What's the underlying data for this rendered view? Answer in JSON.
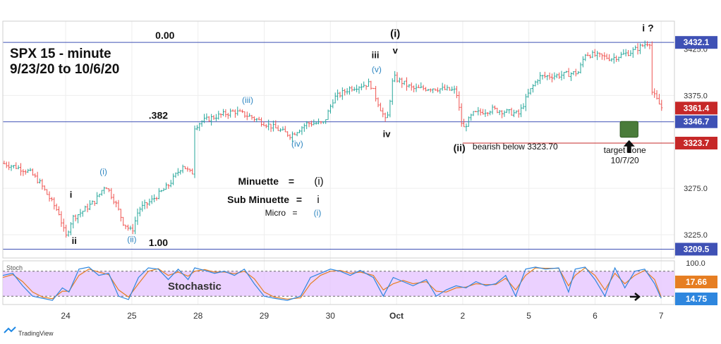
{
  "chart_data": [
    {
      "type": "ohlc",
      "title": "SPX 15 - minute",
      "subtitle": "9/23/20 to 10/6/20",
      "y_axis": {
        "ticks": [
          3225.0,
          3275.0,
          3375.0
        ],
        "partial_tick": "3425.0",
        "ylim": [
          3200,
          3455
        ],
        "scale": "linear",
        "position": "right"
      },
      "x_axis": {
        "ticks": [
          {
            "label": "24",
            "x": 0.95
          },
          {
            "label": "25",
            "x": 1.95
          },
          {
            "label": "28",
            "x": 2.95
          },
          {
            "label": "29",
            "x": 3.95
          },
          {
            "label": "30",
            "x": 4.95
          },
          {
            "label": "Oct",
            "x": 5.95
          },
          {
            "label": "2",
            "x": 6.95
          },
          {
            "label": "5",
            "x": 7.95
          },
          {
            "label": "6",
            "x": 8.95
          },
          {
            "label": "7",
            "x": 9.95
          }
        ],
        "xlim": [
          0,
          10.15
        ]
      },
      "grid": true,
      "price_path": [
        [
          0.0,
          3302
        ],
        [
          0.2,
          3298
        ],
        [
          0.4,
          3293
        ],
        [
          0.55,
          3282
        ],
        [
          0.7,
          3265
        ],
        [
          0.85,
          3248
        ],
        [
          0.95,
          3222
        ],
        [
          1.05,
          3243
        ],
        [
          1.2,
          3250
        ],
        [
          1.4,
          3262
        ],
        [
          1.55,
          3279
        ],
        [
          1.7,
          3260
        ],
        [
          1.82,
          3238
        ],
        [
          1.95,
          3228
        ],
        [
          2.05,
          3252
        ],
        [
          2.25,
          3262
        ],
        [
          2.5,
          3278
        ],
        [
          2.72,
          3300
        ],
        [
          2.82,
          3292
        ],
        [
          2.88,
          3340
        ],
        [
          3.0,
          3347
        ],
        [
          3.2,
          3352
        ],
        [
          3.5,
          3358
        ],
        [
          3.75,
          3352
        ],
        [
          4.05,
          3342
        ],
        [
          4.35,
          3332
        ],
        [
          4.6,
          3345
        ],
        [
          4.85,
          3345
        ],
        [
          5.0,
          3372
        ],
        [
          5.25,
          3383
        ],
        [
          5.55,
          3388
        ],
        [
          5.8,
          3345
        ],
        [
          5.9,
          3395
        ],
        [
          6.2,
          3382
        ],
        [
          6.5,
          3383
        ],
        [
          6.85,
          3380
        ],
        [
          6.95,
          3338
        ],
        [
          7.1,
          3355
        ],
        [
          7.4,
          3360
        ],
        [
          7.8,
          3355
        ],
        [
          7.95,
          3378
        ],
        [
          8.1,
          3395
        ],
        [
          8.45,
          3397
        ],
        [
          8.7,
          3400
        ],
        [
          8.8,
          3420
        ],
        [
          9.2,
          3415
        ],
        [
          9.5,
          3422
        ],
        [
          9.75,
          3432
        ],
        [
          9.8,
          3380
        ],
        [
          9.95,
          3362
        ]
      ],
      "horizontal_levels": [
        {
          "value": 3432.1,
          "label": "3432.1",
          "color": "#3f51b5",
          "line": "full"
        },
        {
          "value": 3346.7,
          "label": "3346.7",
          "color": "#3f51b5",
          "line": "full"
        },
        {
          "value": 3323.7,
          "label": "3323.7",
          "color": "#c62828",
          "line": "partial",
          "x_start": 6.95
        },
        {
          "value": 3209.5,
          "label": "3209.5",
          "color": "#3f51b5",
          "line": "full"
        }
      ],
      "current_price": {
        "value": 3361.4,
        "label": "3361.4",
        "color": "#c62828"
      },
      "fib_labels": [
        {
          "text": "0.00",
          "x": 2.45,
          "y": 3436
        },
        {
          "text": ".382",
          "x": 2.35,
          "y": 3350
        },
        {
          "text": "1.00",
          "x": 2.35,
          "y": 3213
        }
      ],
      "wave_labels": [
        {
          "text": "i",
          "x": 1.03,
          "y": 3265,
          "color": "#111111",
          "size": 13
        },
        {
          "text": "ii",
          "x": 1.08,
          "y": 3215,
          "color": "#111111",
          "size": 13
        },
        {
          "text": "(i)",
          "x": 1.52,
          "y": 3290,
          "color": "#2e86c1",
          "size": 12
        },
        {
          "text": "(ii)",
          "x": 1.95,
          "y": 3217,
          "color": "#2e86c1",
          "size": 12
        },
        {
          "text": "(iii)",
          "x": 3.7,
          "y": 3367,
          "color": "#2e86c1",
          "size": 12
        },
        {
          "text": "(iv)",
          "x": 4.45,
          "y": 3320,
          "color": "#2e86c1",
          "size": 12
        },
        {
          "text": "iii",
          "x": 5.63,
          "y": 3415,
          "color": "#111111",
          "size": 13
        },
        {
          "text": "(v)",
          "x": 5.65,
          "y": 3400,
          "color": "#2e86c1",
          "size": 12
        },
        {
          "text": "(i)",
          "x": 5.93,
          "y": 3438,
          "color": "#111111",
          "size": 15
        },
        {
          "text": "v",
          "x": 5.93,
          "y": 3420,
          "color": "#111111",
          "size": 13
        },
        {
          "text": "iv",
          "x": 5.8,
          "y": 3330,
          "color": "#111111",
          "size": 13
        },
        {
          "text": "(ii)",
          "x": 6.9,
          "y": 3315,
          "color": "#111111",
          "size": 14
        },
        {
          "text": "i ?",
          "x": 9.75,
          "y": 3444,
          "color": "#111111",
          "size": 14
        }
      ],
      "annotations": [
        {
          "text": "bearish below 3323.70",
          "x": 7.1,
          "y": 3317,
          "color": "#111111"
        },
        {
          "text": "target zone",
          "x": 9.4,
          "y": 3313,
          "color": "#111111"
        },
        {
          "text": "10/7/20",
          "x": 9.4,
          "y": 3302,
          "color": "#111111"
        }
      ],
      "target_zone": {
        "x_start": 9.33,
        "x_end": 9.6,
        "y_low": 3330,
        "y_high": 3347,
        "color": "#4a7c3a"
      },
      "legend": {
        "position": "center",
        "rows": [
          {
            "name": "Minuette",
            "eq": "=",
            "symbol": "(i)",
            "color": "#111111",
            "size": 15
          },
          {
            "name": "Sub Minuette",
            "eq": "=",
            "symbol": "i",
            "color": "#111111",
            "size": 15
          },
          {
            "name": "Micro",
            "eq": "=",
            "symbol": "(i)",
            "color": "#2e86c1",
            "size": 12
          }
        ]
      }
    },
    {
      "type": "line",
      "title": "Stoch",
      "label": "Stochastic",
      "y_axis": {
        "ticks": [
          100.0
        ],
        "ylim": [
          0,
          105
        ],
        "band": [
          20,
          80
        ],
        "band_color": "#e6c6ff"
      },
      "series": [
        {
          "color": "#2e86de",
          "last": 14.75,
          "last_label": "14.75"
        },
        {
          "color": "#e67e22",
          "last": 17.66,
          "last_label": "17.66"
        }
      ],
      "values_k": [
        [
          0.0,
          70
        ],
        [
          0.15,
          75
        ],
        [
          0.3,
          45
        ],
        [
          0.45,
          20
        ],
        [
          0.6,
          15
        ],
        [
          0.75,
          10
        ],
        [
          0.9,
          40
        ],
        [
          1.0,
          30
        ],
        [
          1.15,
          85
        ],
        [
          1.3,
          90
        ],
        [
          1.45,
          70
        ],
        [
          1.6,
          75
        ],
        [
          1.75,
          20
        ],
        [
          1.9,
          12
        ],
        [
          2.05,
          65
        ],
        [
          2.2,
          88
        ],
        [
          2.35,
          85
        ],
        [
          2.5,
          60
        ],
        [
          2.65,
          85
        ],
        [
          2.8,
          60
        ],
        [
          2.9,
          88
        ],
        [
          3.05,
          82
        ],
        [
          3.2,
          75
        ],
        [
          3.35,
          80
        ],
        [
          3.5,
          70
        ],
        [
          3.65,
          85
        ],
        [
          3.8,
          50
        ],
        [
          3.95,
          20
        ],
        [
          4.1,
          15
        ],
        [
          4.3,
          10
        ],
        [
          4.5,
          20
        ],
        [
          4.65,
          65
        ],
        [
          4.8,
          75
        ],
        [
          4.95,
          85
        ],
        [
          5.1,
          80
        ],
        [
          5.25,
          70
        ],
        [
          5.4,
          82
        ],
        [
          5.6,
          65
        ],
        [
          5.75,
          20
        ],
        [
          5.9,
          65
        ],
        [
          6.05,
          55
        ],
        [
          6.2,
          45
        ],
        [
          6.4,
          60
        ],
        [
          6.55,
          20
        ],
        [
          6.7,
          35
        ],
        [
          6.85,
          45
        ],
        [
          7.0,
          40
        ],
        [
          7.15,
          55
        ],
        [
          7.3,
          45
        ],
        [
          7.45,
          50
        ],
        [
          7.6,
          70
        ],
        [
          7.75,
          20
        ],
        [
          7.9,
          85
        ],
        [
          8.05,
          90
        ],
        [
          8.2,
          85
        ],
        [
          8.4,
          88
        ],
        [
          8.55,
          30
        ],
        [
          8.65,
          85
        ],
        [
          8.8,
          90
        ],
        [
          8.95,
          60
        ],
        [
          9.1,
          20
        ],
        [
          9.25,
          88
        ],
        [
          9.4,
          40
        ],
        [
          9.55,
          80
        ],
        [
          9.7,
          85
        ],
        [
          9.85,
          50
        ],
        [
          9.95,
          15
        ]
      ],
      "values_d": [
        [
          0.0,
          65
        ],
        [
          0.15,
          72
        ],
        [
          0.3,
          55
        ],
        [
          0.45,
          30
        ],
        [
          0.6,
          18
        ],
        [
          0.75,
          14
        ],
        [
          0.9,
          32
        ],
        [
          1.0,
          32
        ],
        [
          1.15,
          70
        ],
        [
          1.3,
          85
        ],
        [
          1.45,
          78
        ],
        [
          1.6,
          72
        ],
        [
          1.75,
          35
        ],
        [
          1.9,
          18
        ],
        [
          2.05,
          50
        ],
        [
          2.2,
          80
        ],
        [
          2.35,
          86
        ],
        [
          2.5,
          70
        ],
        [
          2.65,
          78
        ],
        [
          2.8,
          68
        ],
        [
          2.9,
          80
        ],
        [
          3.05,
          84
        ],
        [
          3.2,
          78
        ],
        [
          3.35,
          78
        ],
        [
          3.5,
          74
        ],
        [
          3.65,
          80
        ],
        [
          3.8,
          62
        ],
        [
          3.95,
          30
        ],
        [
          4.1,
          18
        ],
        [
          4.3,
          13
        ],
        [
          4.5,
          16
        ],
        [
          4.65,
          50
        ],
        [
          4.8,
          70
        ],
        [
          4.95,
          80
        ],
        [
          5.1,
          82
        ],
        [
          5.25,
          75
        ],
        [
          5.4,
          78
        ],
        [
          5.6,
          70
        ],
        [
          5.75,
          35
        ],
        [
          5.9,
          50
        ],
        [
          6.05,
          58
        ],
        [
          6.2,
          50
        ],
        [
          6.4,
          55
        ],
        [
          6.55,
          32
        ],
        [
          6.7,
          30
        ],
        [
          6.85,
          40
        ],
        [
          7.0,
          42
        ],
        [
          7.15,
          50
        ],
        [
          7.3,
          48
        ],
        [
          7.45,
          48
        ],
        [
          7.6,
          63
        ],
        [
          7.75,
          35
        ],
        [
          7.9,
          70
        ],
        [
          8.05,
          88
        ],
        [
          8.2,
          87
        ],
        [
          8.4,
          87
        ],
        [
          8.55,
          45
        ],
        [
          8.65,
          70
        ],
        [
          8.8,
          88
        ],
        [
          8.95,
          70
        ],
        [
          9.1,
          35
        ],
        [
          9.25,
          75
        ],
        [
          9.4,
          50
        ],
        [
          9.55,
          70
        ],
        [
          9.7,
          82
        ],
        [
          9.85,
          60
        ],
        [
          9.95,
          18
        ]
      ]
    }
  ],
  "footer": {
    "brand": "TradingView"
  },
  "colors": {
    "up": "#26a69a",
    "down": "#ef5350",
    "grid": "#eeeeee",
    "axis_label_bg": "#3f51b5"
  }
}
